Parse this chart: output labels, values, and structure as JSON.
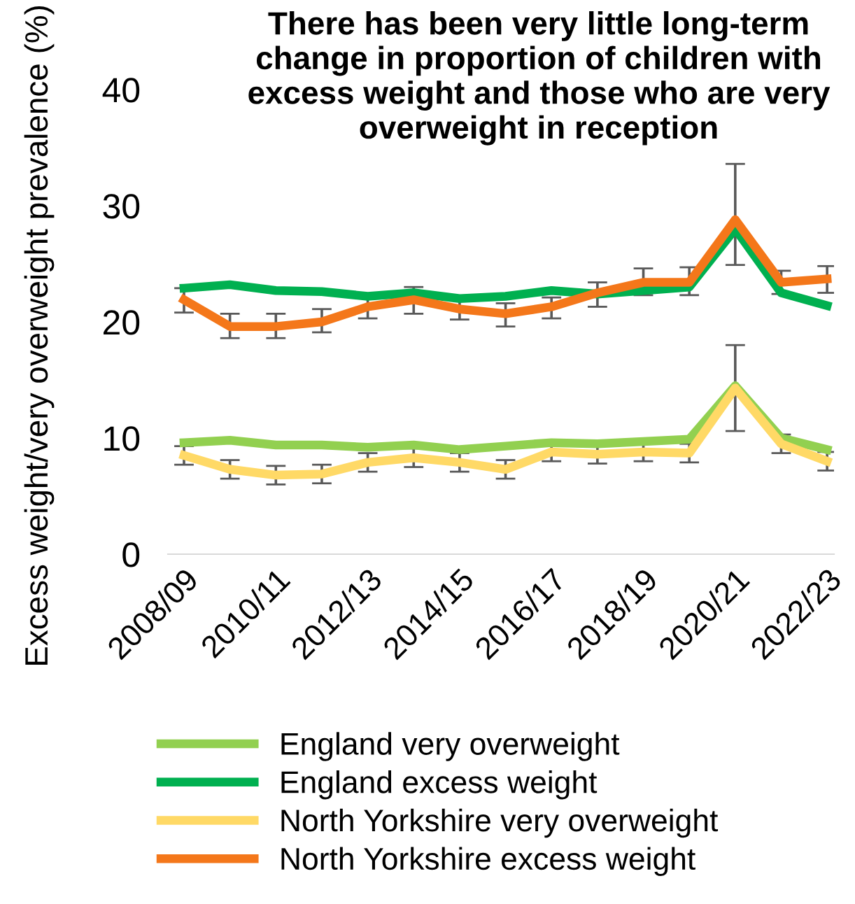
{
  "chart_data": {
    "type": "line",
    "title": "There has been very little long-term change in proportion of children with excess weight and those who are very overweight in reception",
    "ylabel": "Excess weight/very overweight prevalence (%)",
    "categories": [
      "2008/09",
      null,
      "2010/11",
      null,
      "2012/13",
      null,
      "2014/15",
      null,
      "2016/17",
      null,
      "2018/19",
      null,
      "2020/21",
      null,
      "2022/23"
    ],
    "ylim": [
      0,
      40
    ],
    "yticks": [
      0,
      10,
      20,
      30,
      40
    ],
    "grid": false,
    "legend": "bottom",
    "marker": "none",
    "line_style": "solid",
    "series": [
      {
        "name": "England very overweight",
        "color": "#92d050",
        "values": [
          9.6,
          9.8,
          9.4,
          9.4,
          9.2,
          9.4,
          9.0,
          9.3,
          9.6,
          9.5,
          9.7,
          9.9,
          14.5,
          10.0,
          9.0
        ]
      },
      {
        "name": "England excess weight",
        "color": "#00b050",
        "values": [
          22.9,
          23.2,
          22.7,
          22.6,
          22.2,
          22.5,
          22.0,
          22.2,
          22.7,
          22.4,
          22.7,
          23.0,
          28.0,
          22.5,
          21.4
        ]
      },
      {
        "name": "North Yorkshire very overweight",
        "color": "#ffd966",
        "values": [
          8.5,
          7.3,
          6.8,
          6.9,
          7.9,
          8.3,
          7.9,
          7.3,
          8.8,
          8.6,
          8.8,
          8.7,
          14.3,
          9.5,
          8.0
        ],
        "errors": [
          0.8,
          0.8,
          0.8,
          0.8,
          0.8,
          0.8,
          0.8,
          0.8,
          0.8,
          0.8,
          0.8,
          0.8,
          [
            10.6,
            18.0
          ],
          0.8,
          0.8
        ]
      },
      {
        "name": "North Yorkshire excess weight",
        "color": "#f4771a",
        "values": [
          21.9,
          19.6,
          19.6,
          20.0,
          21.3,
          21.9,
          21.1,
          20.7,
          21.3,
          22.5,
          23.4,
          23.4,
          28.8,
          23.4,
          23.7
        ],
        "errors": [
          [
            20.8,
            22.9
          ],
          [
            18.6,
            20.7
          ],
          [
            18.6,
            20.7
          ],
          [
            19.1,
            21.1
          ],
          [
            20.3,
            22.1
          ],
          [
            20.7,
            23.0
          ],
          [
            20.2,
            22.1
          ],
          [
            19.6,
            21.6
          ],
          [
            20.3,
            22.1
          ],
          [
            21.3,
            23.4
          ],
          [
            22.3,
            24.6
          ],
          [
            22.3,
            24.7
          ],
          [
            24.9,
            33.6
          ],
          [
            22.4,
            24.4
          ],
          [
            22.5,
            24.8
          ]
        ]
      }
    ]
  }
}
